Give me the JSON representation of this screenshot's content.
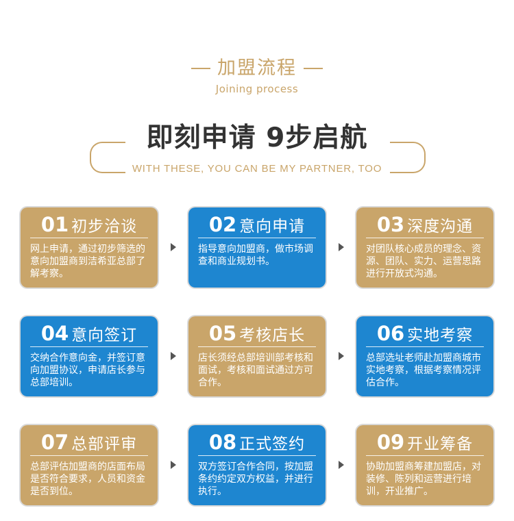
{
  "header": {
    "title": "加盟流程",
    "subtitle": "Joining process",
    "headline": "即刻申请 9步启航",
    "tagline": "WITH THESE, YOU CAN BE MY PARTNER, TOO"
  },
  "colors": {
    "gold": "#c9a56a",
    "blue": "#1e86d0"
  },
  "steps": [
    {
      "num": "01",
      "title": "初步洽谈",
      "desc": "网上申请，通过初步筛选的意向加盟商到洁希亚总部了解考察。",
      "color": "gold"
    },
    {
      "num": "02",
      "title": "意向申请",
      "desc": "指导意向加盟商，做市场调查和商业规划书。",
      "color": "blue"
    },
    {
      "num": "03",
      "title": "深度沟通",
      "desc": "对团队核心成员的理念、资源、团队、实力、运营思路进行开放式沟通。",
      "color": "gold"
    },
    {
      "num": "04",
      "title": "意向签订",
      "desc": "交纳合作意向金，并签订意向加盟协议，申请店长参与总部培训。",
      "color": "blue"
    },
    {
      "num": "05",
      "title": "考核店长",
      "desc": "店长须经总部培训部考核和面试，考核和面试通过方可合作。",
      "color": "gold"
    },
    {
      "num": "06",
      "title": "实地考察",
      "desc": "总部选址老师赴加盟商城市实地考察，根据考察情况评估合作。",
      "color": "blue"
    },
    {
      "num": "07",
      "title": "总部评审",
      "desc": "总部评估加盟商的店面布局是否符合要求，人员和资金是否到位。",
      "color": "gold"
    },
    {
      "num": "08",
      "title": "正式签约",
      "desc": "双方签订合作合同，按加盟条约约定双方权益，并进行执行。",
      "color": "blue"
    },
    {
      "num": "09",
      "title": "开业筹备",
      "desc": "协助加盟商筹建加盟店，对装修、陈列和运营进行培训，开业推广。",
      "color": "gold"
    }
  ]
}
